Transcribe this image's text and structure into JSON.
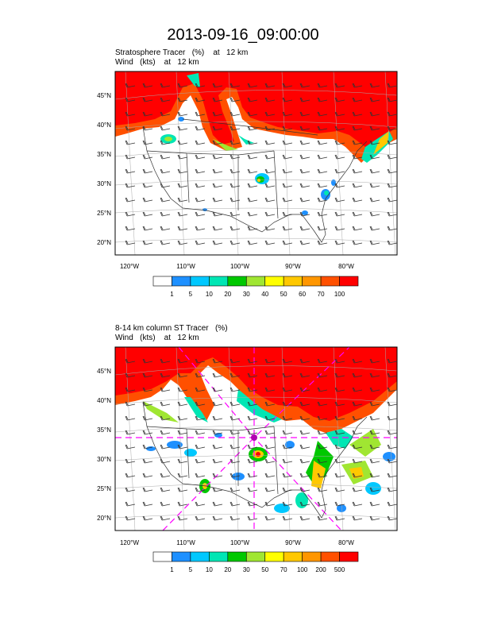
{
  "title": "2013-09-16_09:00:00",
  "panels": [
    {
      "line1": "Stratosphere Tracer   (%)    at   12 km",
      "line2": "Wind   (kts)    at   12 km",
      "lat_labels": [
        "45°N",
        "40°N",
        "35°N",
        "30°N",
        "25°N",
        "20°N"
      ],
      "lon_labels": [
        "120°W",
        "110°W",
        "100°W",
        "90°W",
        "80°W"
      ],
      "colorbar_labels": [
        "1",
        "5",
        "10",
        "20",
        "30",
        "40",
        "50",
        "60",
        "70",
        "100"
      ]
    },
    {
      "line1": "8-14 km column ST Tracer   (%)",
      "line2": "Wind   (kts)    at   12 km",
      "lat_labels": [
        "45°N",
        "40°N",
        "35°N",
        "30°N",
        "25°N",
        "20°N"
      ],
      "lon_labels": [
        "120°W",
        "110°W",
        "100°W",
        "90°W",
        "80°W"
      ],
      "colorbar_labels": [
        "1",
        "5",
        "10",
        "20",
        "30",
        "50",
        "70",
        "100",
        "200",
        "500"
      ]
    }
  ],
  "colors": {
    "colorbar": [
      "#ffffff",
      "#1e90ff",
      "#00c8ff",
      "#00e6b4",
      "#00c800",
      "#a0e632",
      "#ffff00",
      "#ffc800",
      "#ff9600",
      "#ff5000",
      "#ff0000"
    ]
  }
}
